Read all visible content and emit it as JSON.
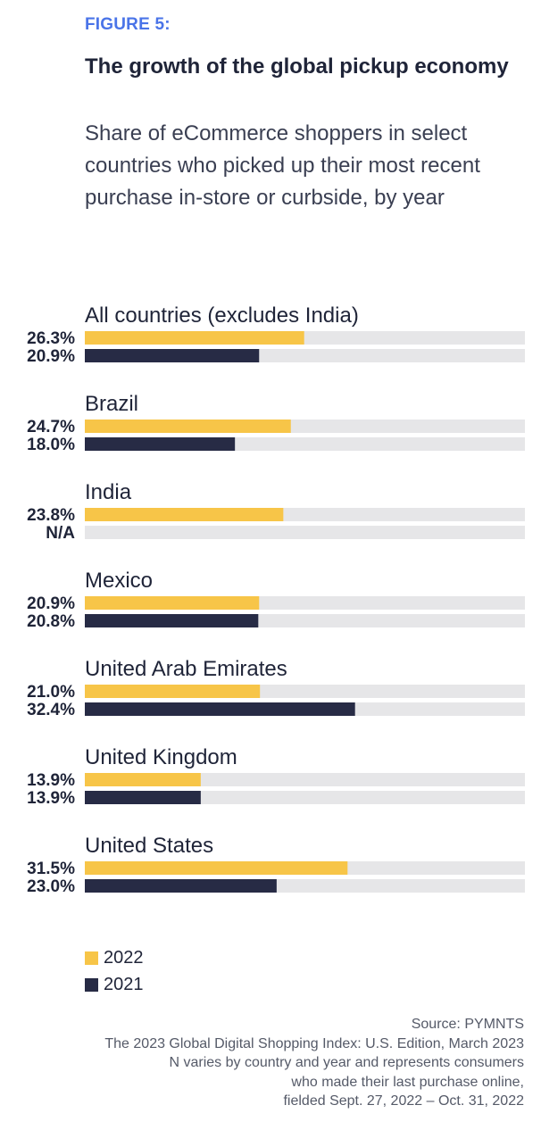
{
  "figure_label": "FIGURE 5:",
  "title": "The growth of the global pickup economy",
  "subtitle": "Share of eCommerce shoppers in select countries who picked up their most recent purchase in-store or curbside, by year",
  "colors": {
    "y2022": "#f7c548",
    "y2021": "#272b45",
    "track": "#e6e6e8"
  },
  "chart_data": {
    "type": "bar",
    "orientation": "horizontal",
    "categories": [
      "All countries (excludes India)",
      "Brazil",
      "India",
      "Mexico",
      "United Arab Emirates",
      "United Kingdom",
      "United States"
    ],
    "series": [
      {
        "name": "2022",
        "values": [
          26.3,
          24.7,
          23.8,
          20.9,
          21.0,
          13.9,
          31.5
        ],
        "labels": [
          "26.3%",
          "24.7%",
          "23.8%",
          "20.9%",
          "21.0%",
          "13.9%",
          "31.5%"
        ]
      },
      {
        "name": "2021",
        "values": [
          20.9,
          18.0,
          null,
          20.8,
          32.4,
          13.9,
          23.0
        ],
        "labels": [
          "20.9%",
          "18.0%",
          "N/A",
          "20.8%",
          "32.4%",
          "13.9%",
          "23.0%"
        ]
      }
    ],
    "xlim": [
      0,
      100
    ],
    "legend_position": "bottom-left"
  },
  "legend": [
    {
      "label": "2022",
      "color": "#f7c548"
    },
    {
      "label": "2021",
      "color": "#272b45"
    }
  ],
  "source": [
    "Source: PYMNTS",
    "The 2023 Global Digital Shopping Index: U.S. Edition, March 2023",
    "N varies by country and year and represents consumers",
    "who made their last purchase online,",
    "fielded Sept. 27, 2022 – Oct. 31, 2022"
  ]
}
